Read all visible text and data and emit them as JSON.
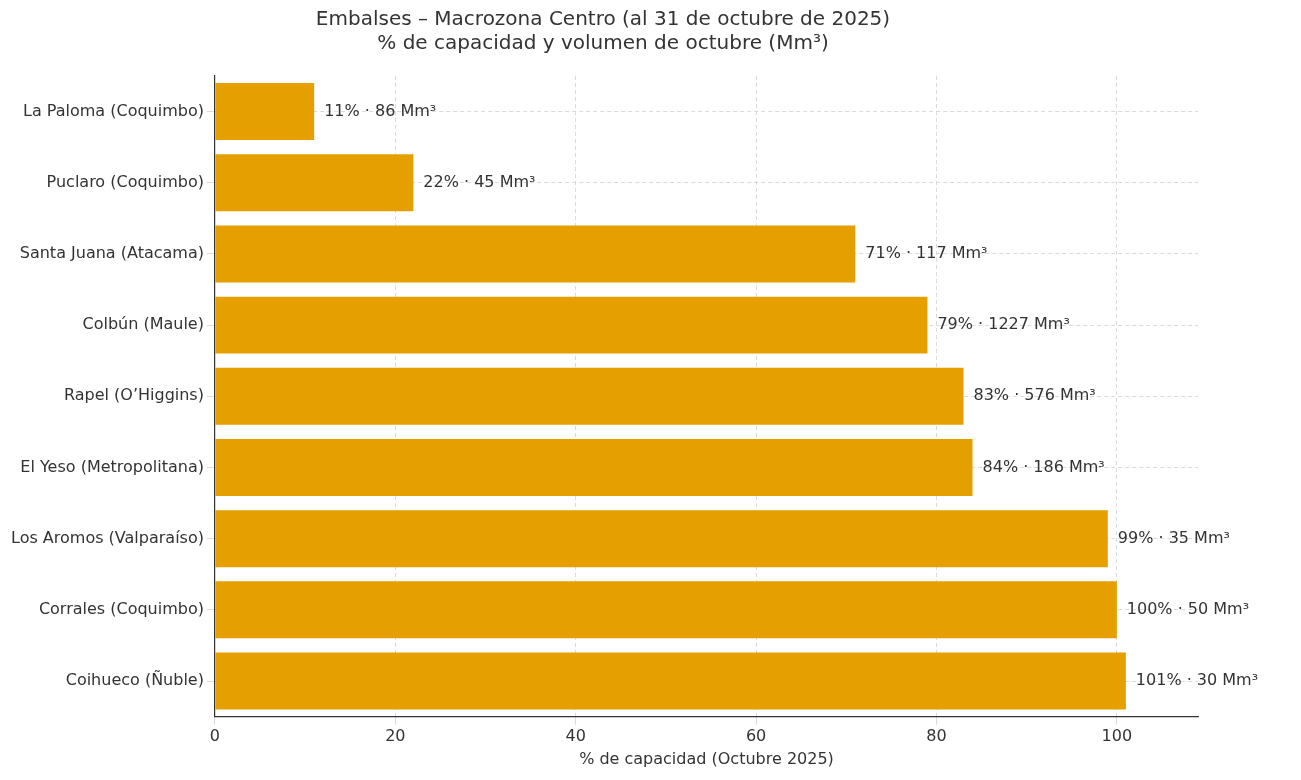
{
  "chart_data": {
    "type": "bar",
    "orientation": "horizontal",
    "title": "Embalses – Macrozona Centro (al 31 de octubre de 2025)",
    "subtitle": "% de capacidad y volumen de octubre (Mm³)",
    "xlabel": "% de capacidad (Octubre 2025)",
    "categories": [
      "La Paloma (Coquimbo)",
      "Puclaro (Coquimbo)",
      "Santa Juana (Atacama)",
      "Colbún (Maule)",
      "Rapel (O’Higgins)",
      "El Yeso (Metropolitana)",
      "Los Aromos (Valparaíso)",
      "Corrales (Coquimbo)",
      "Coihueco (Ñuble)"
    ],
    "values": [
      11,
      22,
      71,
      79,
      83,
      84,
      99,
      100,
      101
    ],
    "value_labels": [
      "11% · 86 Mm³",
      "22% · 45 Mm³",
      "71% · 117 Mm³",
      "79% · 1227 Mm³",
      "83% · 576 Mm³",
      "84% · 186 Mm³",
      "99% · 35 Mm³",
      "100% · 50 Mm³",
      "101% · 30 Mm³"
    ],
    "color": "#e5a000",
    "xlim": [
      0,
      109
    ],
    "xticks": [
      0,
      20,
      40,
      60,
      80,
      100
    ],
    "grid": true
  }
}
